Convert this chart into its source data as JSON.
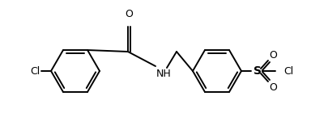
{
  "background_color": "#ffffff",
  "line_color": "#000000",
  "line_width": 1.4,
  "font_size": 9,
  "figsize": [
    4.05,
    1.71
  ],
  "dpi": 100,
  "xlim": [
    0,
    405
  ],
  "ylim": [
    0,
    171
  ]
}
